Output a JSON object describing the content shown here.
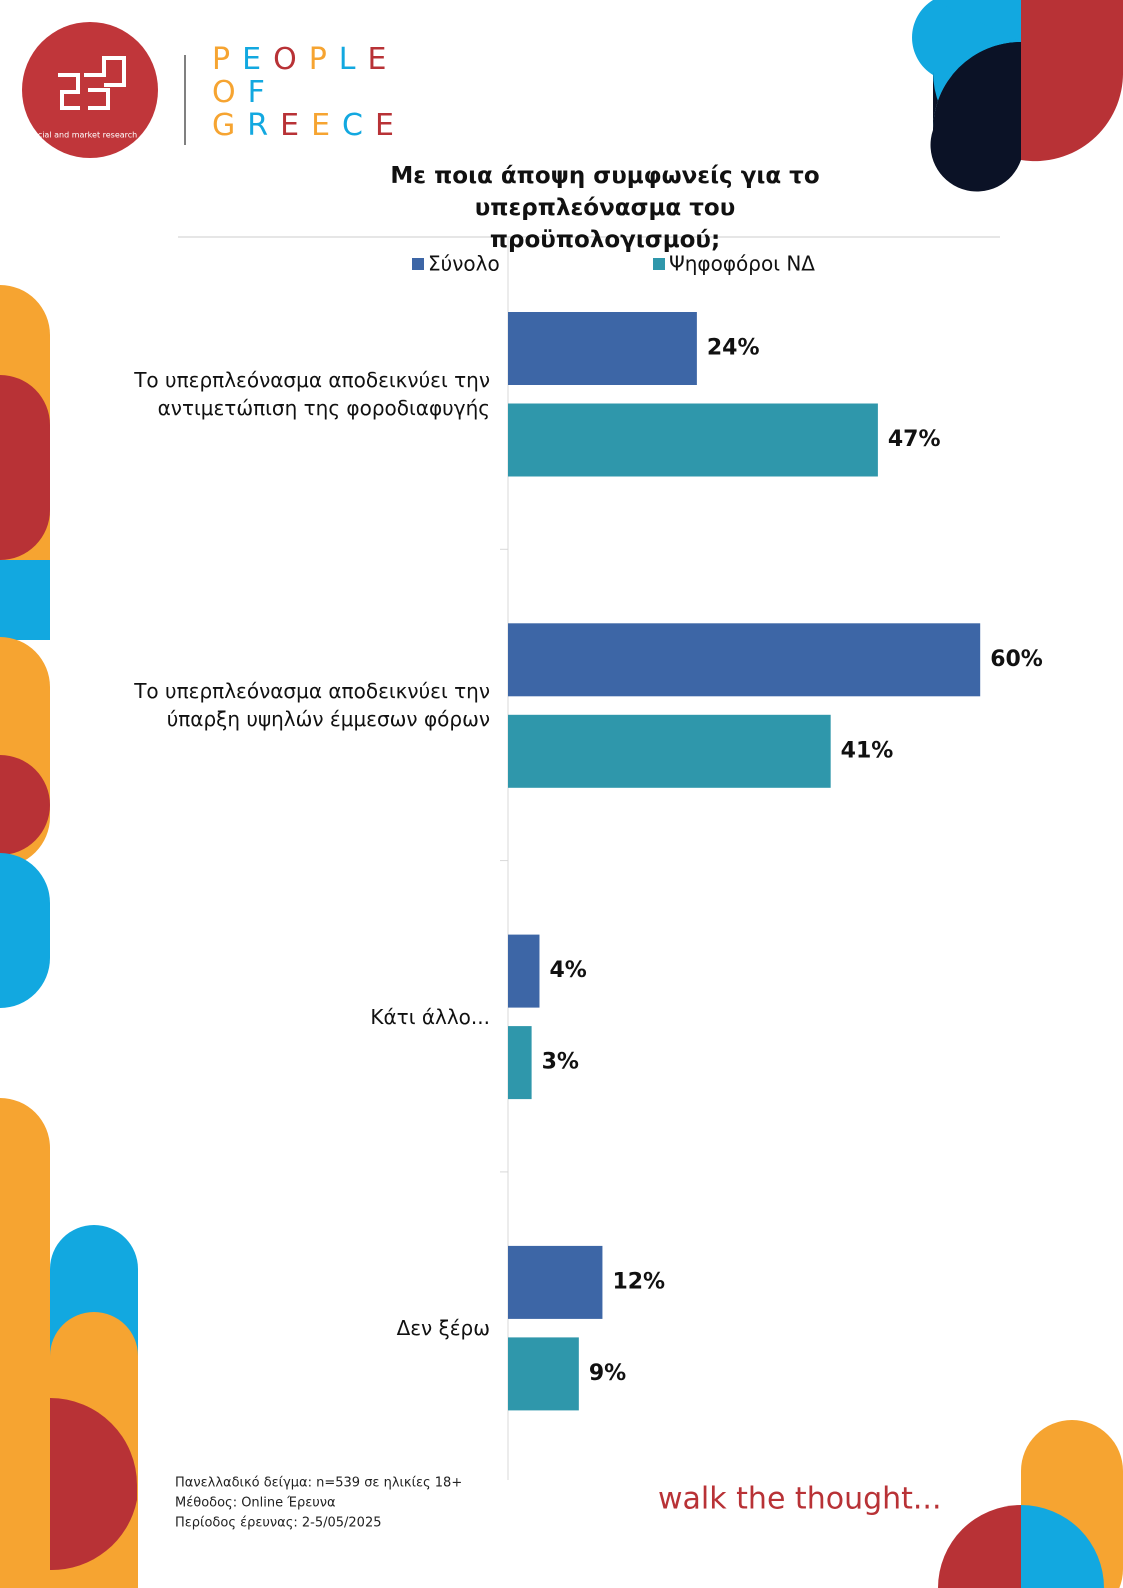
{
  "header": {
    "logo_caption": "social and market research",
    "brand": [
      "PEOPLE",
      "OF",
      "GREECE"
    ]
  },
  "chart_data": {
    "type": "hbar",
    "title": "Με ποια άποψη συμφωνείς για το υπερπλεόνασμα του προϋπολογισμού;",
    "categories": [
      "Το υπερπλεόνασμα αποδεικνύει την αντιμετώπιση της φοροδιαφυγής",
      "Το υπερπλεόνασμα αποδεικνύει την ύπαρξη υψηλών έμμεσων φόρων",
      "Κάτι άλλο...",
      "Δεν ξέρω"
    ],
    "series": [
      {
        "name": "Σύνολο",
        "color": "#3d66a6",
        "values": [
          24,
          60,
          4,
          12
        ],
        "value_labels": [
          "24%",
          "60%",
          "4%",
          "12%"
        ]
      },
      {
        "name": "Ψηφοφόροι ΝΔ",
        "color": "#2f97ab",
        "values": [
          47,
          41,
          3,
          9
        ],
        "value_labels": [
          "47%",
          "41%",
          "3%",
          "9%"
        ]
      }
    ]
  },
  "footer": {
    "notes": [
      "Πανελλαδικό δείγμα: n=539 σε ηλικίες 18+",
      "Μέθοδος: Online Έρευνα",
      "Περίοδος έρευνας: 2-5/05/2025"
    ],
    "slogan": "walk the thought..."
  }
}
